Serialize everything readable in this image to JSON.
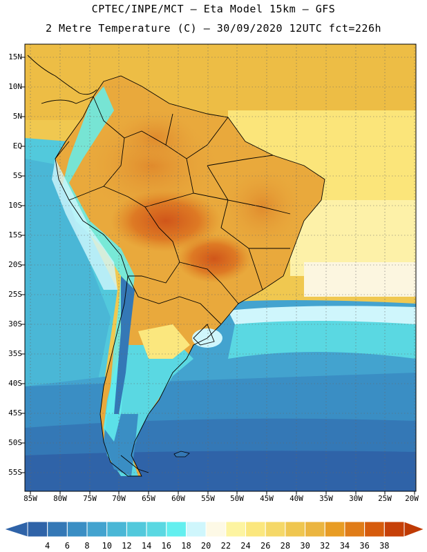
{
  "header": {
    "line1": "CPTEC/INPE/MCT –  Eta Model 15km – GFS",
    "line2": "2 Metre Temperature (C) – 30/09/2020 12UTC fct=226h"
  },
  "map": {
    "lat_labels": [
      "15N",
      "10N",
      "5N",
      "EQ",
      "5S",
      "10S",
      "15S",
      "20S",
      "25S",
      "30S",
      "35S",
      "40S",
      "45S",
      "50S",
      "55S"
    ],
    "lon_labels": [
      "85W",
      "80W",
      "75W",
      "70W",
      "65W",
      "60W",
      "55W",
      "50W",
      "45W",
      "40W",
      "35W",
      "30W",
      "25W",
      "20W"
    ],
    "background_color": "#e9c148",
    "ocean_cold_color": "#2f63a8"
  },
  "legend": {
    "values": [
      "4",
      "6",
      "8",
      "10",
      "12",
      "14",
      "16",
      "18",
      "20",
      "22",
      "24",
      "26",
      "28",
      "30",
      "32",
      "34",
      "36",
      "38"
    ],
    "colors": [
      "#2f63a8",
      "#3478b6",
      "#3a8ec4",
      "#43a3cf",
      "#4ab7d6",
      "#52c9dc",
      "#5ad8e2",
      "#63efef",
      "#cff6fc",
      "#fdf9e6",
      "#fdf4a1",
      "#fbe77e",
      "#f5d868",
      "#efc650",
      "#ebb540",
      "#e89c24",
      "#e07c18",
      "#d65b0c",
      "#c64008"
    ],
    "left_arrow_color": "#2f63a8",
    "right_arrow_color": "#bf3a04"
  }
}
